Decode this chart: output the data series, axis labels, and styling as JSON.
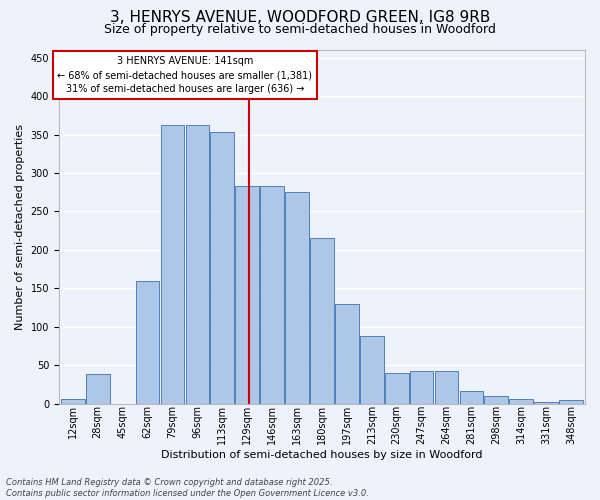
{
  "title_line1": "3, HENRYS AVENUE, WOODFORD GREEN, IG8 9RB",
  "title_line2": "Size of property relative to semi-detached houses in Woodford",
  "xlabel": "Distribution of semi-detached houses by size in Woodford",
  "ylabel": "Number of semi-detached properties",
  "bin_labels": [
    "12sqm",
    "28sqm",
    "45sqm",
    "62sqm",
    "79sqm",
    "96sqm",
    "113sqm",
    "129sqm",
    "146sqm",
    "163sqm",
    "180sqm",
    "197sqm",
    "213sqm",
    "230sqm",
    "247sqm",
    "264sqm",
    "281sqm",
    "298sqm",
    "314sqm",
    "331sqm",
    "348sqm"
  ],
  "bar_values": [
    6,
    38,
    0,
    160,
    363,
    363,
    353,
    283,
    283,
    275,
    215,
    130,
    88,
    40,
    42,
    42,
    17,
    10,
    6,
    2,
    5
  ],
  "bar_color": "#aec6e8",
  "bar_edge_color": "#4f81bd",
  "vline_color": "#cc0000",
  "vline_x": 141,
  "annotation_text": "3 HENRYS AVENUE: 141sqm\n← 68% of semi-detached houses are smaller (1,381)\n31% of semi-detached houses are larger (636) →",
  "annotation_box_color": "#ffffff",
  "annotation_box_edge": "#cc0000",
  "ylim": [
    0,
    460
  ],
  "yticks": [
    0,
    50,
    100,
    150,
    200,
    250,
    300,
    350,
    400,
    450
  ],
  "footnote": "Contains HM Land Registry data © Crown copyright and database right 2025.\nContains public sector information licensed under the Open Government Licence v3.0.",
  "bg_color": "#eef2fa",
  "grid_color": "#ffffff",
  "title_fontsize": 11,
  "subtitle_fontsize": 9,
  "label_fontsize": 8,
  "tick_fontsize": 7,
  "annot_fontsize": 7,
  "footnote_fontsize": 6
}
